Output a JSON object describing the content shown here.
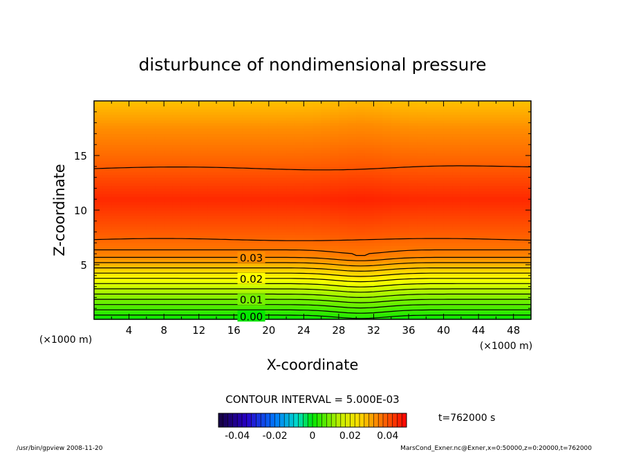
{
  "chart_data": {
    "type": "heatmap",
    "title": "disturbunce of nondimensional pressure",
    "xlabel": "X-coordinate",
    "ylabel": "Z-coordinate",
    "x_unit_left": "(×1000 m)",
    "x_unit_right": "(×1000 m)",
    "xlim": [
      0,
      50
    ],
    "ylim": [
      0,
      20
    ],
    "x_ticks": [
      4,
      8,
      12,
      16,
      20,
      24,
      28,
      32,
      36,
      40,
      44,
      48
    ],
    "y_ticks": [
      5,
      10,
      15
    ],
    "contour_labels": [
      {
        "label": "0.03",
        "value": 0.03
      },
      {
        "label": "0.02",
        "value": 0.02
      },
      {
        "label": "0.01",
        "value": 0.01
      },
      {
        "label": "0.00",
        "value": 0.0
      }
    ],
    "contour_interval_text": "CONTOUR INTERVAL = 5.000E-03",
    "time_text": "t=762000 s",
    "colorbar": {
      "range": [
        -0.05,
        0.05
      ],
      "tick_labels": [
        "-0.04",
        "-0.02",
        "0",
        "0.02",
        "0.04"
      ],
      "tick_values": [
        -0.04,
        -0.02,
        0,
        0.02,
        0.04
      ]
    },
    "colors": {
      "low": "#00e000",
      "mid": "#ffff00",
      "high": "#ff0000"
    }
  },
  "footer": {
    "left": "/usr/bin/gpview   2008-11-20",
    "right": "MarsCond_Exner.nc@Exner,x=0:50000,z=0:20000,t=762000"
  }
}
